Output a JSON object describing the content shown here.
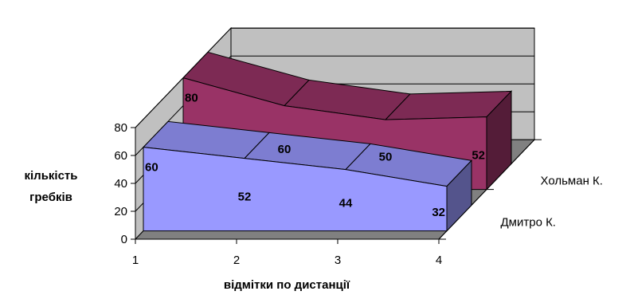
{
  "chart_data": {
    "type": "area",
    "view": "3d",
    "categories": [
      "1",
      "2",
      "3",
      "4"
    ],
    "series": [
      {
        "name": "Дмитро К.",
        "values": [
          60,
          52,
          44,
          32
        ],
        "color": "#9999ff"
      },
      {
        "name": "Хольман К.",
        "values": [
          80,
          60,
          50,
          52
        ],
        "color": "#993366"
      }
    ],
    "y_ticks": [
      "0",
      "20",
      "40",
      "60",
      "80"
    ],
    "ylim": [
      0,
      80
    ],
    "xlabel": "відмітки по дистанції",
    "ylabel_lines": [
      "кількість",
      "гребків"
    ],
    "grid": true,
    "wall_color": "#c0c0c0",
    "floor_color": "#808080"
  }
}
